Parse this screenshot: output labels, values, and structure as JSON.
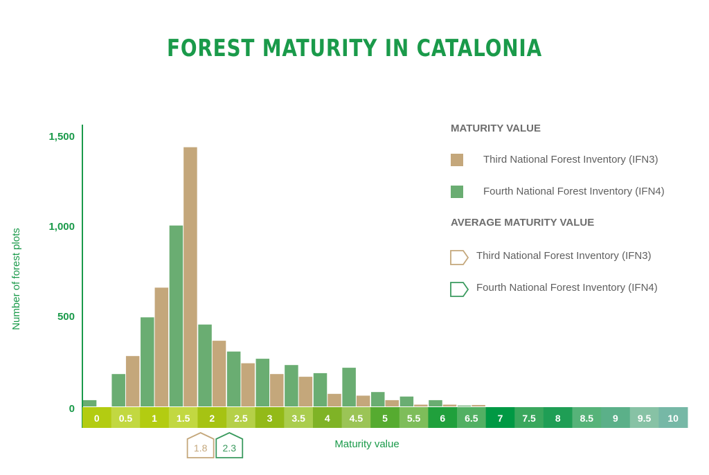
{
  "chart_data": {
    "type": "bar",
    "title": "FOREST MATURITY IN CATALONIA",
    "xlabel": "Maturity value",
    "ylabel": "Number of forest plots",
    "ylim": [
      0,
      1500
    ],
    "yticks": [
      {
        "value": 0,
        "label": "0"
      },
      {
        "value": 500,
        "label": "500"
      },
      {
        "value": 1000,
        "label": "1,000"
      },
      {
        "value": 1500,
        "label": "1,500"
      }
    ],
    "categories": [
      "0",
      "0.5",
      "1",
      "1.5",
      "2",
      "2.5",
      "3",
      "3.5",
      "4",
      "4.5",
      "5",
      "5.5",
      "6",
      "6.5",
      "7",
      "7.5",
      "8",
      "8.5",
      "9",
      "9.5",
      "10"
    ],
    "category_colors": [
      "#b3cc11",
      "#c2d841",
      "#b3cc11",
      "#c2d841",
      "#a6c313",
      "#b5d048",
      "#93ba18",
      "#aacd4e",
      "#7fb326",
      "#9bc456",
      "#56ab30",
      "#7ebd5a",
      "#20a03c",
      "#52b063",
      "#009944",
      "#3aa75d",
      "#1f9e55",
      "#56b379",
      "#5bb089",
      "#87c2a5",
      "#76b8a6"
    ],
    "legend_title_bars": "MATURITY VALUE",
    "legend_title_avg": "AVERAGE MATURITY VALUE",
    "series": [
      {
        "name": "Third National Forest Inventory (IFN3)",
        "color": "#c4a77b",
        "values": [
          0,
          280,
          660,
          1440,
          365,
          240,
          180,
          165,
          70,
          60,
          35,
          10,
          10,
          8,
          0,
          0,
          0,
          0,
          0,
          0,
          0
        ],
        "average": 1.8,
        "average_label": "1.8"
      },
      {
        "name": "Fourth National Forest Inventory (IFN4)",
        "color": "#6aad72",
        "values": [
          35,
          180,
          495,
          1005,
          455,
          305,
          265,
          230,
          185,
          215,
          80,
          55,
          35,
          5,
          0,
          0,
          0,
          0,
          0,
          0,
          0
        ],
        "average": 2.3,
        "average_label": "2.3"
      }
    ],
    "avg_marker_colors": [
      "#c4a77b",
      "#3a9a5e"
    ],
    "grid": false,
    "legend_position": "top-right"
  },
  "legend": {
    "head_bars": "MATURITY VALUE",
    "ifn3": "Third National Forest Inventory (IFN3)",
    "ifn4": "Fourth National Forest Inventory (IFN4)",
    "head_avg": "AVERAGE MATURITY VALUE",
    "avg_ifn3": "Third National Forest Inventory (IFN3)",
    "avg_ifn4": "Fourth National Forest Inventory (IFN4)"
  }
}
